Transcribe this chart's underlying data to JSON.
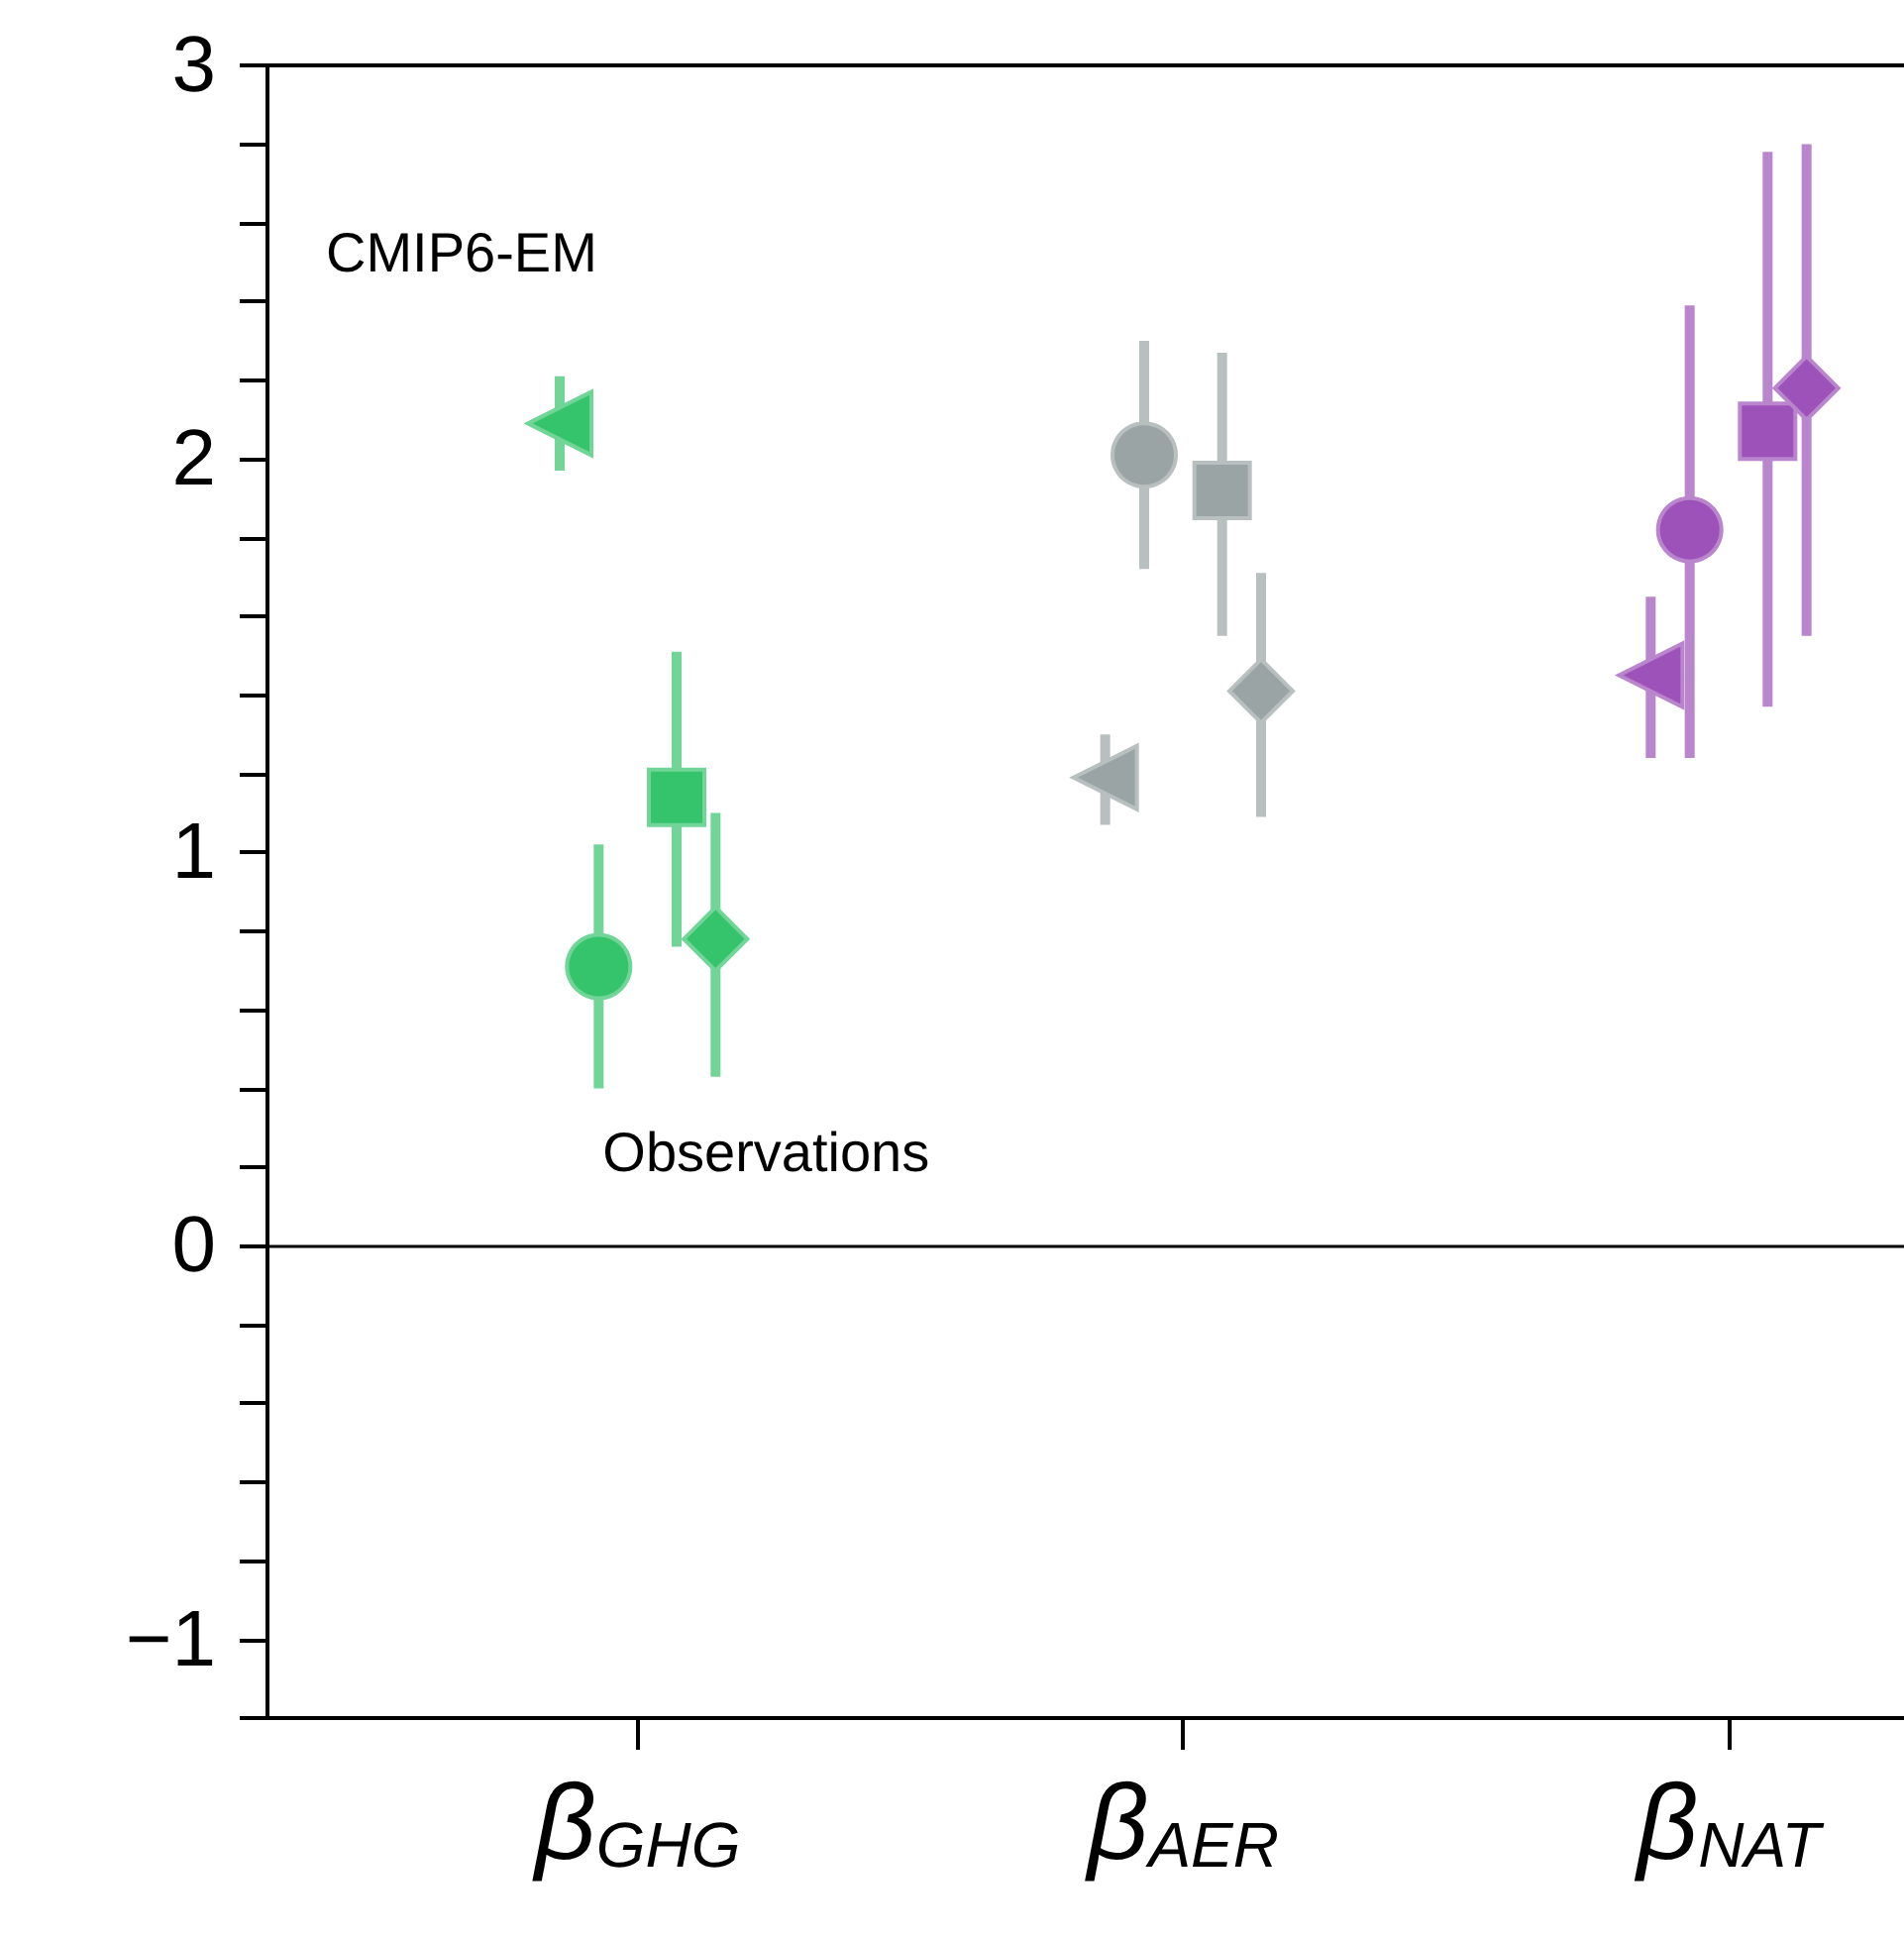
{
  "chart_data": {
    "type": "scatter",
    "categories": [
      null,
      null,
      null,
      null,
      null,
      null,
      null,
      null,
      null,
      "β$_{GHG}$",
      null,
      null,
      null,
      null,
      null,
      null,
      null,
      null,
      null,
      null,
      null,
      null,
      null,
      "β$_{AER}$",
      null,
      null,
      null,
      null,
      null,
      null,
      null,
      null,
      null,
      null,
      null,
      null,
      null,
      "β$_{NAT}$",
      null,
      null,
      null,
      null
    ],
    "series": [
      {
        "name": "CMIP6-EM",
        "marker": "triangle",
        "values": [
          null,
          null,
          null,
          null,
          null,
          null,
          null,
          2.09,
          null,
          null,
          null,
          null,
          null,
          null,
          null,
          null,
          null,
          null,
          null,
          null,
          null,
          1.19,
          null,
          null,
          null,
          null,
          null,
          null,
          null,
          null,
          null,
          null,
          null,
          null,
          null,
          1.45,
          null,
          null,
          null,
          null,
          null,
          null
        ],
        "colors": [
          null,
          null,
          null,
          null,
          null,
          null,
          null,
          "#35c46c",
          null,
          null,
          null,
          null,
          null,
          null,
          null,
          null,
          null,
          null,
          null,
          null,
          null,
          "#9aa4a4",
          null,
          null,
          null,
          null,
          null,
          null,
          null,
          null,
          null,
          null,
          null,
          null,
          null,
          "#9c52b8",
          null,
          null,
          null,
          null,
          null,
          null
        ],
        "errors": [
          null,
          null,
          null,
          null,
          null,
          null,
          null,
          [
            1.97,
            2.21
          ],
          null,
          null,
          null,
          null,
          null,
          null,
          null,
          null,
          null,
          null,
          null,
          null,
          null,
          [
            1.07,
            1.3
          ],
          null,
          null,
          null,
          null,
          null,
          null,
          null,
          null,
          null,
          null,
          null,
          null,
          null,
          [
            1.24,
            1.65
          ],
          null,
          null,
          null,
          null,
          null,
          null
        ]
      },
      {
        "marker": "circle",
        "values": [
          null,
          null,
          null,
          null,
          null,
          null,
          null,
          null,
          0.71,
          null,
          null,
          null,
          null,
          null,
          null,
          null,
          null,
          null,
          null,
          null,
          null,
          null,
          2.01,
          null,
          null,
          null,
          null,
          null,
          null,
          null,
          null,
          null,
          null,
          null,
          null,
          null,
          1.82,
          null,
          null,
          null,
          null,
          null
        ],
        "colors": [
          null,
          null,
          null,
          null,
          null,
          null,
          null,
          null,
          "#35c46c",
          null,
          null,
          null,
          null,
          null,
          null,
          null,
          null,
          null,
          null,
          null,
          null,
          null,
          "#9aa4a4",
          null,
          null,
          null,
          null,
          null,
          null,
          null,
          null,
          null,
          null,
          null,
          null,
          null,
          "#9c52b8",
          null,
          null,
          null,
          null,
          null
        ],
        "errors": [
          null,
          null,
          null,
          null,
          null,
          null,
          null,
          null,
          [
            0.4,
            1.02
          ],
          null,
          null,
          null,
          null,
          null,
          null,
          null,
          null,
          null,
          null,
          null,
          null,
          null,
          [
            1.72,
            2.3
          ],
          null,
          null,
          null,
          null,
          null,
          null,
          null,
          null,
          null,
          null,
          null,
          null,
          null,
          [
            1.24,
            2.39
          ],
          null,
          null,
          null,
          null,
          null
        ]
      },
      {
        "marker": "square",
        "values": [
          null,
          null,
          null,
          null,
          null,
          null,
          null,
          null,
          null,
          null,
          1.14,
          null,
          null,
          null,
          null,
          null,
          null,
          null,
          null,
          null,
          null,
          null,
          null,
          null,
          1.92,
          null,
          null,
          null,
          null,
          null,
          null,
          null,
          null,
          null,
          null,
          null,
          null,
          null,
          2.07,
          null,
          null,
          null
        ],
        "colors": [
          null,
          null,
          null,
          null,
          null,
          null,
          null,
          null,
          null,
          null,
          "#35c46c",
          null,
          null,
          null,
          null,
          null,
          null,
          null,
          null,
          null,
          null,
          null,
          null,
          null,
          "#9aa4a4",
          null,
          null,
          null,
          null,
          null,
          null,
          null,
          null,
          null,
          null,
          null,
          null,
          null,
          "#9c52b8",
          null,
          null,
          null
        ],
        "errors": [
          null,
          null,
          null,
          null,
          null,
          null,
          null,
          null,
          null,
          null,
          [
            0.76,
            1.51
          ],
          null,
          null,
          null,
          null,
          null,
          null,
          null,
          null,
          null,
          null,
          null,
          null,
          null,
          [
            1.55,
            2.27
          ],
          null,
          null,
          null,
          null,
          null,
          null,
          null,
          null,
          null,
          null,
          null,
          null,
          null,
          [
            1.37,
            2.78
          ],
          null,
          null,
          null
        ]
      },
      {
        "marker": "diamond",
        "values": [
          null,
          null,
          null,
          null,
          null,
          null,
          null,
          null,
          null,
          null,
          null,
          0.78,
          null,
          null,
          null,
          null,
          null,
          null,
          null,
          null,
          null,
          null,
          null,
          null,
          null,
          1.41,
          null,
          null,
          null,
          null,
          null,
          null,
          null,
          null,
          null,
          null,
          null,
          null,
          null,
          2.18,
          null,
          null
        ],
        "colors": [
          null,
          null,
          null,
          null,
          null,
          null,
          null,
          null,
          null,
          null,
          null,
          "#35c46c",
          null,
          null,
          null,
          null,
          null,
          null,
          null,
          null,
          null,
          null,
          null,
          null,
          null,
          "#9aa4a4",
          null,
          null,
          null,
          null,
          null,
          null,
          null,
          null,
          null,
          null,
          null,
          null,
          null,
          "#9c52b8",
          null,
          null
        ],
        "errors": [
          null,
          null,
          null,
          null,
          null,
          null,
          null,
          null,
          null,
          null,
          null,
          [
            0.43,
            1.1
          ],
          null,
          null,
          null,
          null,
          null,
          null,
          null,
          null,
          null,
          null,
          null,
          null,
          null,
          [
            1.09,
            1.71
          ],
          null,
          null,
          null,
          null,
          null,
          null,
          null,
          null,
          null,
          null,
          null,
          null,
          null,
          [
            1.55,
            2.8
          ],
          null,
          null
        ]
      }
    ],
    "annotations": [
      "Observations"
    ],
    "ylim": [
      -1.2,
      3
    ],
    "yticks": [
      {
        "value": -1.2,
        "label": null
      },
      -1,
      {
        "value": -0.8,
        "label": null
      },
      {
        "value": -0.6,
        "label": null
      },
      {
        "value": -0.4,
        "label": null
      },
      {
        "value": -0.2,
        "label": null
      },
      0,
      {
        "value": 0.2,
        "label": null
      },
      {
        "value": 0.4,
        "label": null
      },
      {
        "value": 0.6,
        "label": null
      },
      {
        "value": 0.8,
        "label": null
      },
      1,
      {
        "value": 1.2,
        "label": null
      },
      {
        "value": 1.4,
        "label": null
      },
      {
        "value": 1.6,
        "label": null
      },
      {
        "value": 1.8,
        "label": null
      },
      2,
      {
        "value": 2.2,
        "label": null
      },
      {
        "value": 2.4,
        "label": null
      },
      {
        "value": 2.6,
        "label": null
      },
      {
        "value": 2.8,
        "label": null
      },
      3
    ],
    "ref_lines": [
      {
        "axis": "y",
        "value": 0,
        "color": "#000000"
      }
    ],
    "grid": false,
    "legend": false
  }
}
